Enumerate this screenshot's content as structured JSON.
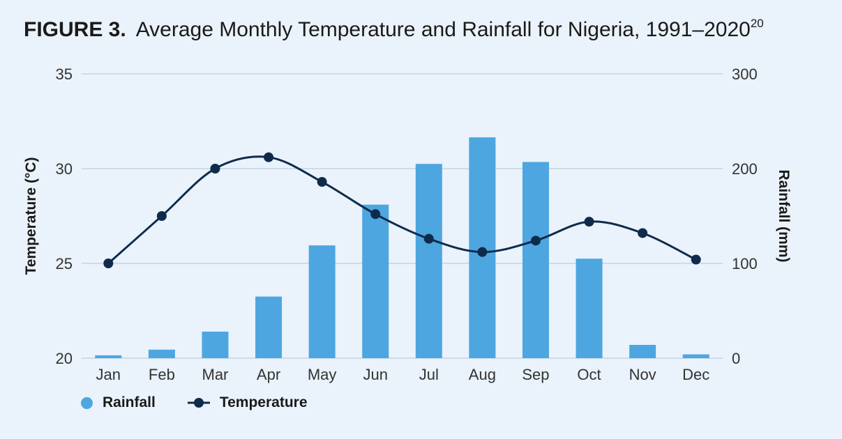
{
  "figure": {
    "label": "FIGURE 3.",
    "title": "Average Monthly Temperature and Rainfall for Nigeria, 1991–2020",
    "footnote": "20"
  },
  "colors": {
    "rainfall": "#4da6e0",
    "temperature": "#0f2b4c",
    "grid": "#c5d3e2",
    "background": "#eaf2fb"
  },
  "chart_data": {
    "type": "bar+line",
    "categories": [
      "Jan",
      "Feb",
      "Mar",
      "Apr",
      "May",
      "Jun",
      "Jul",
      "Aug",
      "Sep",
      "Oct",
      "Nov",
      "Dec"
    ],
    "series": [
      {
        "name": "Rainfall",
        "type": "bar",
        "axis": "right",
        "values": [
          3,
          9,
          28,
          65,
          119,
          162,
          205,
          233,
          207,
          105,
          14,
          4
        ]
      },
      {
        "name": "Temperature",
        "type": "line",
        "axis": "left",
        "values": [
          25.0,
          27.5,
          30.0,
          30.6,
          29.3,
          27.6,
          26.3,
          25.6,
          26.2,
          27.2,
          26.6,
          25.2
        ]
      }
    ],
    "y_left": {
      "label": "Temperature (°C)",
      "min": 20,
      "max": 35,
      "ticks": [
        20,
        25,
        30,
        35
      ]
    },
    "y_right": {
      "label": "Rainfall (mm)",
      "min": 0,
      "max": 300,
      "ticks": [
        0,
        100,
        200,
        300
      ]
    },
    "grid": true,
    "legend_position": "bottom-left"
  },
  "legend": {
    "rainfall_label": "Rainfall",
    "temperature_label": "Temperature"
  }
}
